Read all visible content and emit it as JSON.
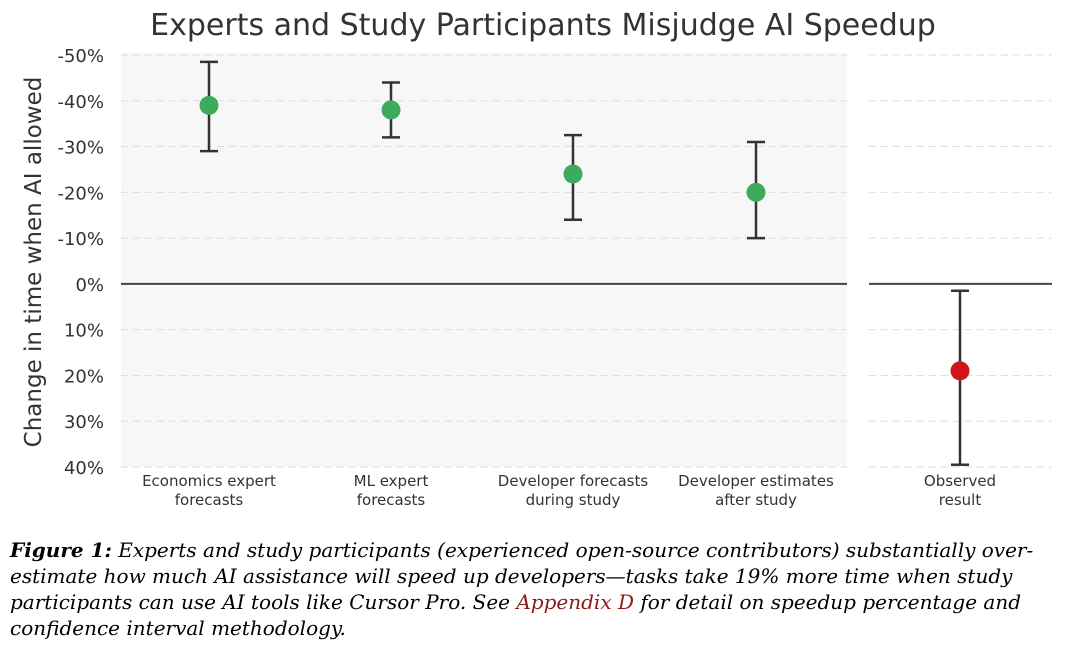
{
  "chart_data": {
    "type": "scatter",
    "title": "Experts and Study Participants Misjudge AI Speedup",
    "ylabel": "Change in time when AI allowed",
    "ylim": [
      -50,
      40
    ],
    "y_inverted": true,
    "yticks": [
      {
        "value": -50,
        "label": "-50%"
      },
      {
        "value": -40,
        "label": "-40%"
      },
      {
        "value": -30,
        "label": "-30%"
      },
      {
        "value": -20,
        "label": "-20%"
      },
      {
        "value": -10,
        "label": "-10%"
      },
      {
        "value": 0,
        "label": "0%"
      },
      {
        "value": 10,
        "label": "10%"
      },
      {
        "value": 20,
        "label": "20%"
      },
      {
        "value": 30,
        "label": "30%"
      },
      {
        "value": 40,
        "label": "40%"
      }
    ],
    "grid": true,
    "panels": [
      {
        "name": "forecasts",
        "points": [
          {
            "label_lines": [
              "Economics expert",
              "forecasts"
            ],
            "y": -39,
            "ci": [
              -48.5,
              -29
            ],
            "color": "#3daa5c"
          },
          {
            "label_lines": [
              "ML expert",
              "forecasts"
            ],
            "y": -38,
            "ci": [
              -44,
              -32
            ],
            "color": "#3daa5c"
          },
          {
            "label_lines": [
              "Developer forecasts",
              "during study"
            ],
            "y": -24,
            "ci": [
              -32.5,
              -14
            ],
            "color": "#3daa5c"
          },
          {
            "label_lines": [
              "Developer estimates",
              "after study"
            ],
            "y": -20,
            "ci": [
              -31,
              -10
            ],
            "color": "#3daa5c"
          }
        ]
      },
      {
        "name": "observed",
        "points": [
          {
            "label_lines": [
              "Observed",
              "result"
            ],
            "y": 19,
            "ci": [
              1.5,
              39.5
            ],
            "color": "#d0141c"
          }
        ]
      }
    ]
  },
  "caption": {
    "label": "Figure 1:",
    "text_before_link": "Experts and study participants (experienced open-source contributors) substantially over-estimate how much AI assistance will speed up developers—tasks take 19% more time when study participants can use AI tools like Cursor Pro. See",
    "link_text": "Appendix D",
    "text_after_link": "for detail on speedup percentage and confidence interval methodology."
  },
  "colors": {
    "forecast_marker": "#3daa5c",
    "observed_marker": "#d0141c",
    "panel_background": "#f7f7f7",
    "link": "#8b1a1a"
  }
}
